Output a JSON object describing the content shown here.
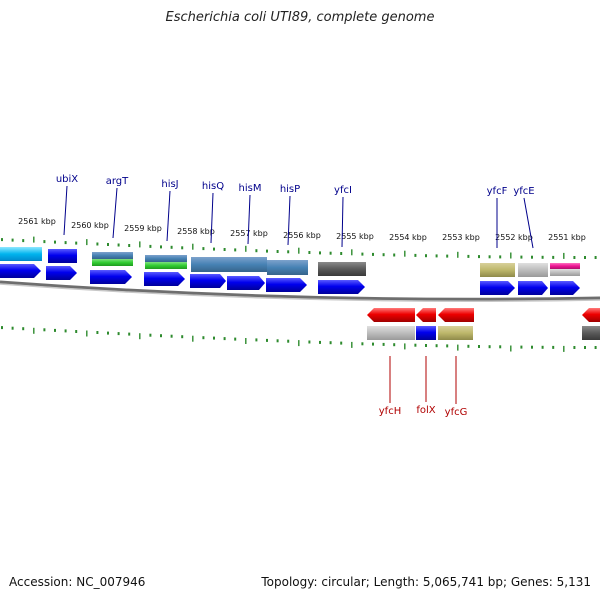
{
  "title": "Escherichia coli UTI89, complete genome",
  "footer": {
    "accession": "Accession: NC_007946",
    "summary": "Topology: circular; Length: 5,065,741 bp; Genes: 5,131"
  },
  "colors": {
    "backbone": "#888888",
    "tick": "#2e8b2e",
    "forward_cds": "#0000ee",
    "reverse_cds": "#ee0000",
    "forward_label": "#00008b",
    "reverse_label": "#b00000"
  },
  "kbp_labels": [
    "2561 kbp",
    "2560 kbp",
    "2559 kbp",
    "2558 kbp",
    "2557 kbp",
    "2556 kbp",
    "2555 kbp",
    "2554 kbp",
    "2553 kbp",
    "2552 kbp",
    "2551 kbp"
  ],
  "forward_genes": [
    "ubiX",
    "argT",
    "hisJ",
    "hisQ",
    "hisM",
    "hisP",
    "yfcI",
    "yfcF",
    "yfcE"
  ],
  "reverse_genes": [
    "yfcH",
    "folX",
    "yfcG"
  ]
}
